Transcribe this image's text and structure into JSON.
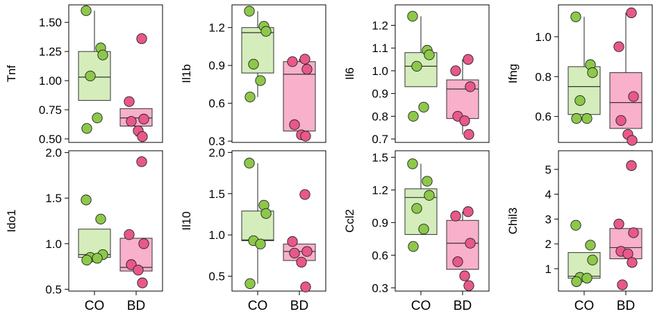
{
  "chart_data": [
    {
      "type": "box",
      "ylabel": "Tnf",
      "ylim": [
        0.47,
        1.65
      ],
      "yticks": [
        0.5,
        0.75,
        1.0,
        1.25,
        1.5
      ],
      "ytick_labels": [
        "0.50",
        "0.75",
        "1.00",
        "1.25",
        "1.50"
      ],
      "categories": [],
      "groups": [
        {
          "name": "CO",
          "color": "#d4edbb",
          "point_color": "#8dc84a",
          "box": {
            "min": 0.83,
            "q1": 0.83,
            "median": 1.03,
            "q3": 1.25,
            "max": 1.6
          },
          "points": [
            1.6,
            1.28,
            1.22,
            1.04,
            0.68,
            0.59
          ]
        },
        {
          "name": "BD",
          "color": "#f8b0cb",
          "point_color": "#e8588a",
          "box": {
            "min": 0.52,
            "q1": 0.61,
            "median": 0.68,
            "q3": 0.76,
            "max": 0.76
          },
          "points": [
            1.36,
            0.82,
            0.67,
            0.65,
            0.57,
            0.52
          ]
        }
      ]
    },
    {
      "type": "box",
      "ylabel": "Il1b",
      "ylim": [
        0.29,
        1.38
      ],
      "yticks": [
        0.3,
        0.6,
        0.9,
        1.2
      ],
      "ytick_labels": [
        "0.3",
        "0.6",
        "0.9",
        "1.2"
      ],
      "categories": [],
      "groups": [
        {
          "name": "CO",
          "color": "#d4edbb",
          "point_color": "#8dc84a",
          "box": {
            "min": 0.65,
            "q1": 0.84,
            "median": 1.16,
            "q3": 1.2,
            "max": 1.33
          },
          "points": [
            1.33,
            1.21,
            1.17,
            0.91,
            0.78,
            0.65
          ]
        },
        {
          "name": "BD",
          "color": "#f8b0cb",
          "point_color": "#e8588a",
          "box": {
            "min": 0.34,
            "q1": 0.38,
            "median": 0.83,
            "q3": 0.93,
            "max": 0.95
          },
          "points": [
            0.95,
            0.93,
            0.87,
            0.43,
            0.35,
            0.34
          ]
        }
      ]
    },
    {
      "type": "box",
      "ylabel": "Il6",
      "ylim": [
        0.685,
        1.29
      ],
      "yticks": [
        0.7,
        0.8,
        0.9,
        1.0,
        1.1,
        1.2
      ],
      "ytick_labels": [
        "0.7",
        "0.8",
        "0.9",
        "1.0",
        "1.1",
        "1.2"
      ],
      "categories": [],
      "groups": [
        {
          "name": "CO",
          "color": "#d4edbb",
          "point_color": "#8dc84a",
          "box": {
            "min": 0.93,
            "q1": 0.93,
            "median": 1.02,
            "q3": 1.08,
            "max": 1.24
          },
          "points": [
            1.24,
            1.09,
            1.07,
            1.02,
            0.84,
            0.8
          ]
        },
        {
          "name": "BD",
          "color": "#f8b0cb",
          "point_color": "#e8588a",
          "box": {
            "min": 0.72,
            "q1": 0.79,
            "median": 0.92,
            "q3": 0.96,
            "max": 1.05
          },
          "points": [
            1.05,
            1.0,
            0.93,
            0.8,
            0.78,
            0.72
          ]
        }
      ]
    },
    {
      "type": "box",
      "ylabel": "Ifng",
      "ylim": [
        0.47,
        1.16
      ],
      "yticks": [
        0.6,
        0.8,
        1.0
      ],
      "ytick_labels": [
        "0.6",
        "0.8",
        "1.0"
      ],
      "categories": [],
      "groups": [
        {
          "name": "CO",
          "color": "#d4edbb",
          "point_color": "#8dc84a",
          "box": {
            "min": 0.61,
            "q1": 0.61,
            "median": 0.75,
            "q3": 0.85,
            "max": 1.1
          },
          "points": [
            1.1,
            0.86,
            0.82,
            0.68,
            0.59,
            0.59
          ]
        },
        {
          "name": "BD",
          "color": "#f8b0cb",
          "point_color": "#e8588a",
          "box": {
            "min": 0.54,
            "q1": 0.54,
            "median": 0.67,
            "q3": 0.82,
            "max": 1.12
          },
          "points": [
            1.12,
            0.95,
            0.7,
            0.58,
            0.51,
            0.48
          ]
        }
      ]
    },
    {
      "type": "box",
      "ylabel": "Ido1",
      "ylim": [
        0.48,
        2.02
      ],
      "yticks": [
        0.5,
        1.0,
        1.5,
        2.0
      ],
      "ytick_labels": [
        "0.5",
        "1.0",
        "1.5",
        "2.0"
      ],
      "categories": [
        "CO",
        "BD"
      ],
      "groups": [
        {
          "name": "CO",
          "color": "#d4edbb",
          "point_color": "#8dc84a",
          "box": {
            "min": 0.82,
            "q1": 0.85,
            "median": 0.88,
            "q3": 1.16,
            "max": 1.16
          },
          "points": [
            1.48,
            1.27,
            0.88,
            0.85,
            0.84,
            0.82
          ]
        },
        {
          "name": "BD",
          "color": "#f8b0cb",
          "point_color": "#e8588a",
          "box": {
            "min": 0.7,
            "q1": 0.7,
            "median": 0.74,
            "q3": 1.06,
            "max": 1.06
          },
          "points": [
            1.9,
            1.1,
            1.0,
            0.77,
            0.71,
            0.57
          ]
        }
      ]
    },
    {
      "type": "box",
      "ylabel": "Il10",
      "ylim": [
        0.32,
        2.02
      ],
      "yticks": [
        0.5,
        1.0,
        1.5,
        2.0
      ],
      "ytick_labels": [
        "0.5",
        "1.0",
        "1.5",
        "2.0"
      ],
      "categories": [
        "CO",
        "BD"
      ],
      "groups": [
        {
          "name": "CO",
          "color": "#d4edbb",
          "point_color": "#8dc84a",
          "box": {
            "min": 0.41,
            "q1": 0.93,
            "median": 0.94,
            "q3": 1.29,
            "max": 1.87
          },
          "points": [
            1.87,
            1.36,
            1.26,
            0.93,
            0.89,
            0.41
          ]
        },
        {
          "name": "BD",
          "color": "#f8b0cb",
          "point_color": "#e8588a",
          "box": {
            "min": 0.69,
            "q1": 0.69,
            "median": 0.8,
            "q3": 0.89,
            "max": 0.89
          },
          "points": [
            1.49,
            0.92,
            0.8,
            0.78,
            0.67,
            0.37
          ]
        }
      ]
    },
    {
      "type": "box",
      "ylabel": "Ccl2",
      "ylim": [
        0.27,
        1.56
      ],
      "yticks": [
        0.3,
        0.6,
        0.9,
        1.2,
        1.5
      ],
      "ytick_labels": [
        "0.3",
        "0.6",
        "0.9",
        "1.2",
        "1.5"
      ],
      "categories": [
        "CO",
        "BD"
      ],
      "groups": [
        {
          "name": "CO",
          "color": "#d4edbb",
          "point_color": "#8dc84a",
          "box": {
            "min": 0.79,
            "q1": 0.79,
            "median": 1.13,
            "q3": 1.21,
            "max": 1.44
          },
          "points": [
            1.44,
            1.28,
            1.15,
            1.03,
            0.84,
            0.68
          ]
        },
        {
          "name": "BD",
          "color": "#f8b0cb",
          "point_color": "#e8588a",
          "box": {
            "min": 0.47,
            "q1": 0.47,
            "median": 0.71,
            "q3": 0.92,
            "max": 1.0
          },
          "points": [
            1.0,
            0.96,
            0.71,
            0.54,
            0.41,
            0.32
          ]
        }
      ]
    },
    {
      "type": "box",
      "ylabel": "Chil3",
      "ylim": [
        0.1,
        5.75
      ],
      "yticks": [
        1,
        2,
        3,
        4,
        5
      ],
      "ytick_labels": [
        "1",
        "2",
        "3",
        "4",
        "5"
      ],
      "categories": [
        "CO",
        "BD"
      ],
      "groups": [
        {
          "name": "CO",
          "color": "#d4edbb",
          "point_color": "#8dc84a",
          "box": {
            "min": 0.62,
            "q1": 0.62,
            "median": 0.7,
            "q3": 1.65,
            "max": 1.65
          },
          "points": [
            2.75,
            1.95,
            1.35,
            0.65,
            0.62,
            0.48
          ]
        },
        {
          "name": "BD",
          "color": "#f8b0cb",
          "point_color": "#e8588a",
          "box": {
            "min": 1.4,
            "q1": 1.4,
            "median": 1.85,
            "q3": 2.62,
            "max": 2.62
          },
          "points": [
            5.15,
            2.8,
            2.45,
            1.7,
            1.6,
            1.25,
            0.35
          ]
        }
      ]
    }
  ]
}
